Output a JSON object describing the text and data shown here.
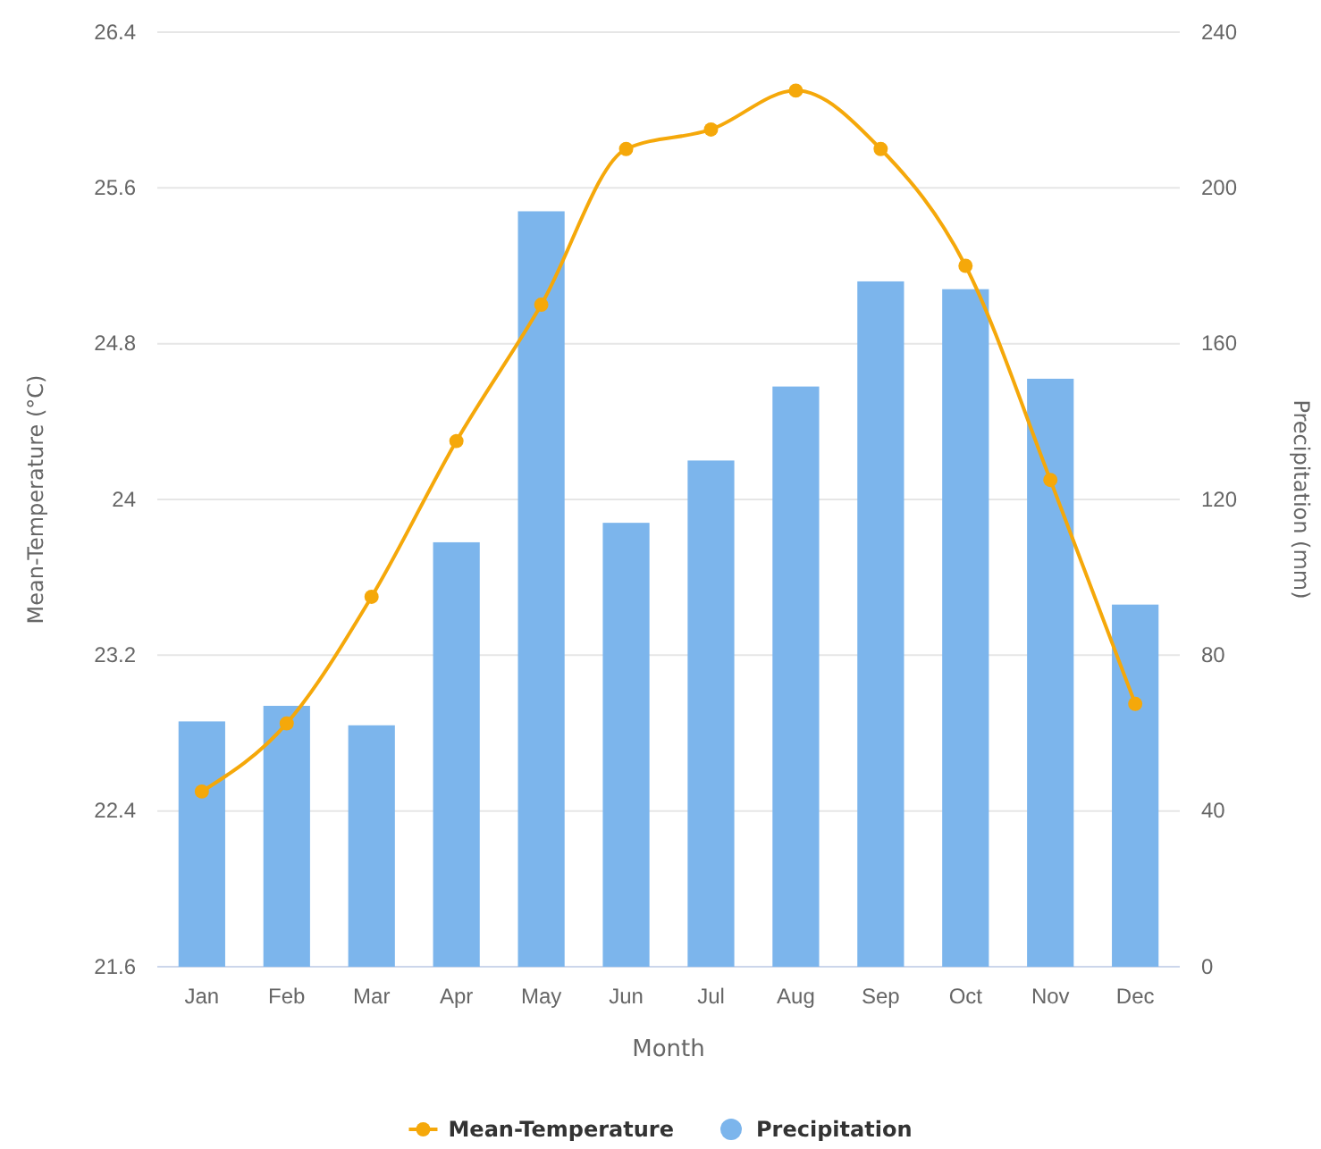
{
  "chart_data": {
    "type": "bar",
    "xlabel": "Month",
    "ylabel": "Mean-Temperature (°C)",
    "y2label": "Precipitation (mm)",
    "categories": [
      "Jan",
      "Feb",
      "Mar",
      "Apr",
      "May",
      "Jun",
      "Jul",
      "Aug",
      "Sep",
      "Oct",
      "Nov",
      "Dec"
    ],
    "series": [
      {
        "name": "Mean-Temperature",
        "type": "line",
        "color": "#f5a80a",
        "values": [
          22.5,
          22.85,
          23.5,
          24.3,
          25.0,
          25.8,
          25.9,
          26.1,
          25.8,
          25.2,
          24.1,
          22.95
        ]
      },
      {
        "name": "Precipitation",
        "axis": "y2",
        "color": "#7cb5ec",
        "values": [
          63,
          67,
          62,
          109,
          194,
          114,
          130,
          149,
          176,
          174,
          151,
          93
        ]
      }
    ],
    "ylim": [
      21.6,
      26.4
    ],
    "yticks": [
      21.6,
      22.4,
      23.2,
      24,
      24.8,
      25.6,
      26.4
    ],
    "y2lim": [
      0,
      240
    ],
    "y2ticks": [
      0,
      40,
      80,
      120,
      160,
      200,
      240
    ],
    "grid": "y",
    "legend": "bottom",
    "marker": "circle",
    "line_style": "solid"
  }
}
